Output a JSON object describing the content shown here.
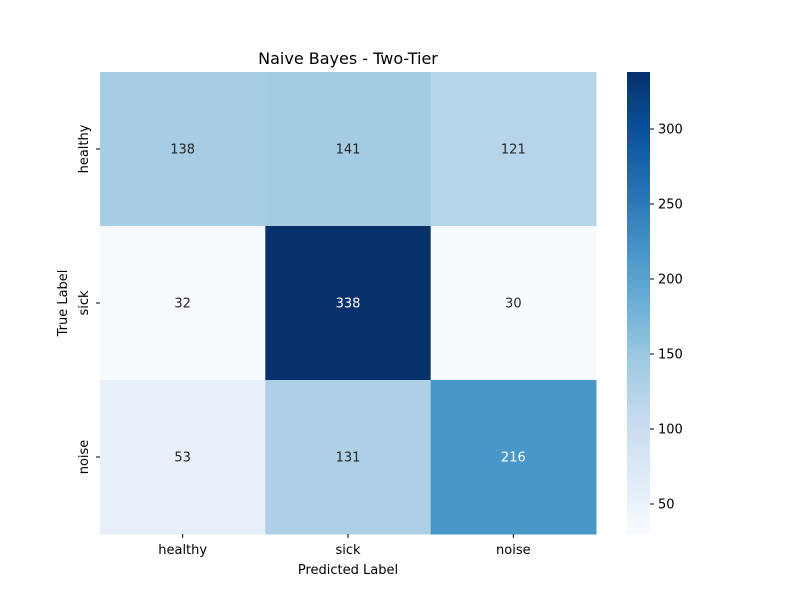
{
  "chart_data": {
    "type": "heatmap",
    "title": "Naive Bayes - Two-Tier",
    "xlabel": "Predicted Label",
    "ylabel": "True Label",
    "x_categories": [
      "healthy",
      "sick",
      "noise"
    ],
    "y_categories": [
      "healthy",
      "sick",
      "noise"
    ],
    "values": [
      [
        138,
        141,
        121
      ],
      [
        32,
        338,
        30
      ],
      [
        53,
        131,
        216
      ]
    ],
    "colormap": "Blues",
    "color_range": [
      30,
      338
    ],
    "colorbar_ticks": [
      50,
      100,
      150,
      200,
      250,
      300
    ],
    "colorbar_stops": [
      "#f7fbff",
      "#deebf7",
      "#c6dbef",
      "#9ecae1",
      "#6baed6",
      "#4292c6",
      "#2171b5",
      "#08519c",
      "#08306b"
    ],
    "annotation_text_dark": "#262626",
    "annotation_text_light": "#ffffff"
  }
}
